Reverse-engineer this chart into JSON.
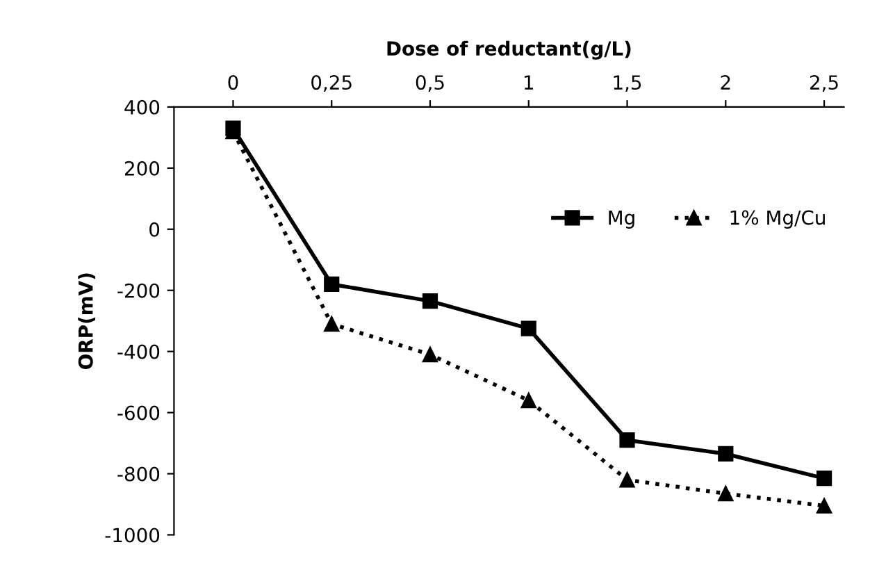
{
  "chart_data": {
    "type": "line",
    "xlabel": "Dose of reductant(g/L)",
    "ylabel": "ORP(mV)",
    "categories": [
      "0",
      "0,25",
      "0,5",
      "1",
      "1,5",
      "2",
      "2,5"
    ],
    "ylim": [
      -1000,
      400
    ],
    "yticks": [
      -1000,
      -800,
      -600,
      -400,
      -200,
      0,
      200,
      400
    ],
    "grid": false,
    "legend": "top right",
    "series": [
      {
        "name": "Mg",
        "color": "#000000",
        "marker": "square",
        "line_style": "solid",
        "values": [
          330,
          -180,
          -235,
          -325,
          -690,
          -735,
          -815
        ]
      },
      {
        "name": "1% Mg/Cu",
        "color": "#000000",
        "marker": "triangle",
        "line_style": "dotted",
        "values": [
          320,
          -310,
          -410,
          -560,
          -820,
          -865,
          -905
        ]
      }
    ]
  }
}
